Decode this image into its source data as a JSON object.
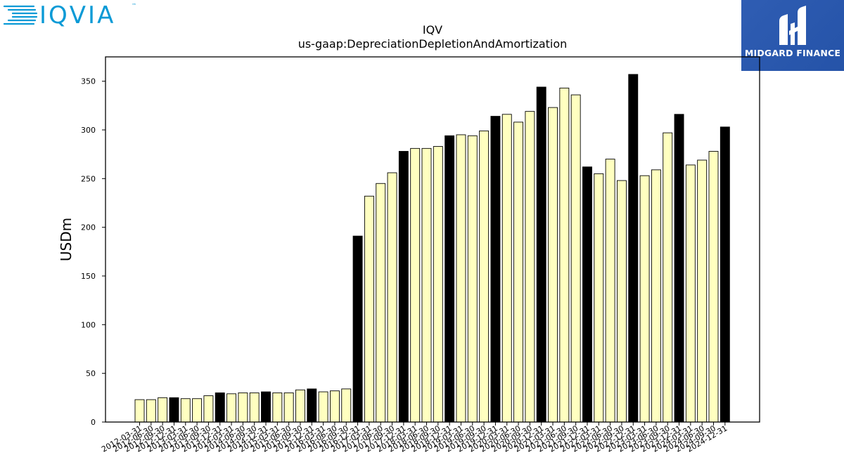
{
  "logos": {
    "left_text": "IQVIA",
    "left_tm": "™",
    "right_text": "MIDGARD FINANCE"
  },
  "colors": {
    "bar_fill_default": "#ffffc0",
    "bar_fill_highlight": "#000000",
    "bar_stroke": "#000000",
    "iqvia_accent": "#0a9ad6",
    "midgard_bg": "#2553a8"
  },
  "chart_data": {
    "type": "bar",
    "title": "IQV",
    "subtitle": "us-gaap:DepreciationDepletionAndAmortization",
    "xlabel": "",
    "ylabel": "USDm",
    "ylim": [
      0,
      375
    ],
    "yticks": [
      0,
      50,
      100,
      150,
      200,
      250,
      300,
      350
    ],
    "grid": false,
    "categories": [
      "2012-03-31",
      "2012-06-30",
      "2012-09-30",
      "2012-12-31",
      "2013-03-31",
      "2013-06-30",
      "2013-09-30",
      "2013-12-31",
      "2014-03-31",
      "2014-06-30",
      "2014-09-30",
      "2014-12-31",
      "2015-03-31",
      "2015-06-30",
      "2015-09-30",
      "2015-12-31",
      "2016-03-31",
      "2016-06-30",
      "2016-09-30",
      "2016-12-31",
      "2017-03-31",
      "2017-06-30",
      "2017-09-30",
      "2017-12-31",
      "2018-03-31",
      "2018-06-30",
      "2018-09-30",
      "2018-12-31",
      "2019-03-31",
      "2019-06-30",
      "2019-09-30",
      "2019-12-31",
      "2020-03-31",
      "2020-06-30",
      "2020-09-30",
      "2020-12-31",
      "2021-03-31",
      "2021-06-30",
      "2021-09-30",
      "2021-12-31",
      "2022-03-31",
      "2022-06-30",
      "2022-09-30",
      "2022-12-31",
      "2023-03-31",
      "2023-06-30",
      "2023-09-30",
      "2023-12-31",
      "2024-03-31",
      "2024-06-30",
      "2024-09-30",
      "2024-12-31"
    ],
    "values": [
      23,
      23,
      25,
      25,
      24,
      24,
      27,
      30,
      29,
      30,
      30,
      31,
      30,
      30,
      33,
      34,
      31,
      32,
      34,
      191,
      232,
      245,
      256,
      278,
      281,
      281,
      283,
      294,
      295,
      294,
      299,
      314,
      316,
      308,
      319,
      344,
      323,
      343,
      336,
      262,
      255,
      270,
      248,
      357,
      253,
      259,
      297,
      316,
      264,
      269,
      278,
      303
    ],
    "highlight": [
      false,
      false,
      false,
      true,
      false,
      false,
      false,
      true,
      false,
      false,
      false,
      true,
      false,
      false,
      false,
      true,
      false,
      false,
      false,
      true,
      false,
      false,
      false,
      true,
      false,
      false,
      false,
      true,
      false,
      false,
      false,
      true,
      false,
      false,
      false,
      true,
      false,
      false,
      false,
      true,
      false,
      false,
      false,
      true,
      false,
      false,
      false,
      true,
      false,
      false,
      false,
      true
    ]
  }
}
